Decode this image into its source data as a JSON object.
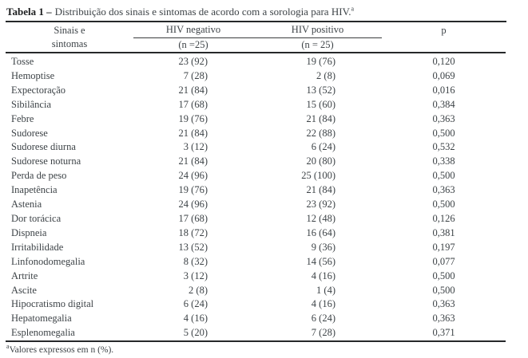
{
  "title": {
    "label": "Tabela 1 –",
    "text": "Distribuição dos sinais e sintomas de acordo com a sorologia para HIV.",
    "footnote_marker": "a"
  },
  "table": {
    "header": {
      "symptoms_line1": "Sinais e",
      "symptoms_line2": "sintomas",
      "group1_label": "HIV negativo",
      "group1_n": "(n =25)",
      "group2_label": "HIV positivo",
      "group2_n": "(n = 25)",
      "p_label": "p"
    },
    "rows": [
      {
        "symptom": "Tosse",
        "hiv_negative": "23 (92)",
        "hiv_positive": "19 (76)",
        "p": "0,120"
      },
      {
        "symptom": "Hemoptise",
        "hiv_negative": "7 (28)",
        "hiv_positive": "2 (8)",
        "p": "0,069"
      },
      {
        "symptom": "Expectoração",
        "hiv_negative": "21 (84)",
        "hiv_positive": "13 (52)",
        "p": "0,016"
      },
      {
        "symptom": "Sibilância",
        "hiv_negative": "17 (68)",
        "hiv_positive": "15 (60)",
        "p": "0,384"
      },
      {
        "symptom": "Febre",
        "hiv_negative": "19 (76)",
        "hiv_positive": "21 (84)",
        "p": "0,363"
      },
      {
        "symptom": "Sudorese",
        "hiv_negative": "21 (84)",
        "hiv_positive": "22 (88)",
        "p": "0,500"
      },
      {
        "symptom": "Sudorese diurna",
        "hiv_negative": "3 (12)",
        "hiv_positive": "6 (24)",
        "p": "0,532"
      },
      {
        "symptom": "Sudorese noturna",
        "hiv_negative": "21 (84)",
        "hiv_positive": "20 (80)",
        "p": "0,338"
      },
      {
        "symptom": "Perda de peso",
        "hiv_negative": "24 (96)",
        "hiv_positive": "25 (100)",
        "p": "0,500"
      },
      {
        "symptom": "Inapetência",
        "hiv_negative": "19 (76)",
        "hiv_positive": "21 (84)",
        "p": "0,363"
      },
      {
        "symptom": "Astenia",
        "hiv_negative": "24 (96)",
        "hiv_positive": "23 (92)",
        "p": "0,500"
      },
      {
        "symptom": "Dor torácica",
        "hiv_negative": "17 (68)",
        "hiv_positive": "12 (48)",
        "p": "0,126"
      },
      {
        "symptom": "Dispneia",
        "hiv_negative": "18 (72)",
        "hiv_positive": "16 (64)",
        "p": "0,381"
      },
      {
        "symptom": "Irritabilidade",
        "hiv_negative": "13 (52)",
        "hiv_positive": "9 (36)",
        "p": "0,197"
      },
      {
        "symptom": "Linfonodomegalia",
        "hiv_negative": "8 (32)",
        "hiv_positive": "14 (56)",
        "p": "0,077"
      },
      {
        "symptom": "Artrite",
        "hiv_negative": "3 (12)",
        "hiv_positive": "4 (16)",
        "p": "0,500"
      },
      {
        "symptom": "Ascite",
        "hiv_negative": "2 (8)",
        "hiv_positive": "1 (4)",
        "p": "0,500"
      },
      {
        "symptom": "Hipocratismo digital",
        "hiv_negative": "6 (24)",
        "hiv_positive": "4 (16)",
        "p": "0,363"
      },
      {
        "symptom": "Hepatomegalia",
        "hiv_negative": "4 (16)",
        "hiv_positive": "6 (24)",
        "p": "0,363"
      },
      {
        "symptom": "Esplenomegalia",
        "hiv_negative": "5 (20)",
        "hiv_positive": "7 (28)",
        "p": "0,371"
      }
    ]
  },
  "footnote": {
    "marker": "a",
    "text": "Valores expressos em n (%)."
  },
  "colors": {
    "text": "#3d4347",
    "rule": "#26282a",
    "background": "#ffffff"
  }
}
